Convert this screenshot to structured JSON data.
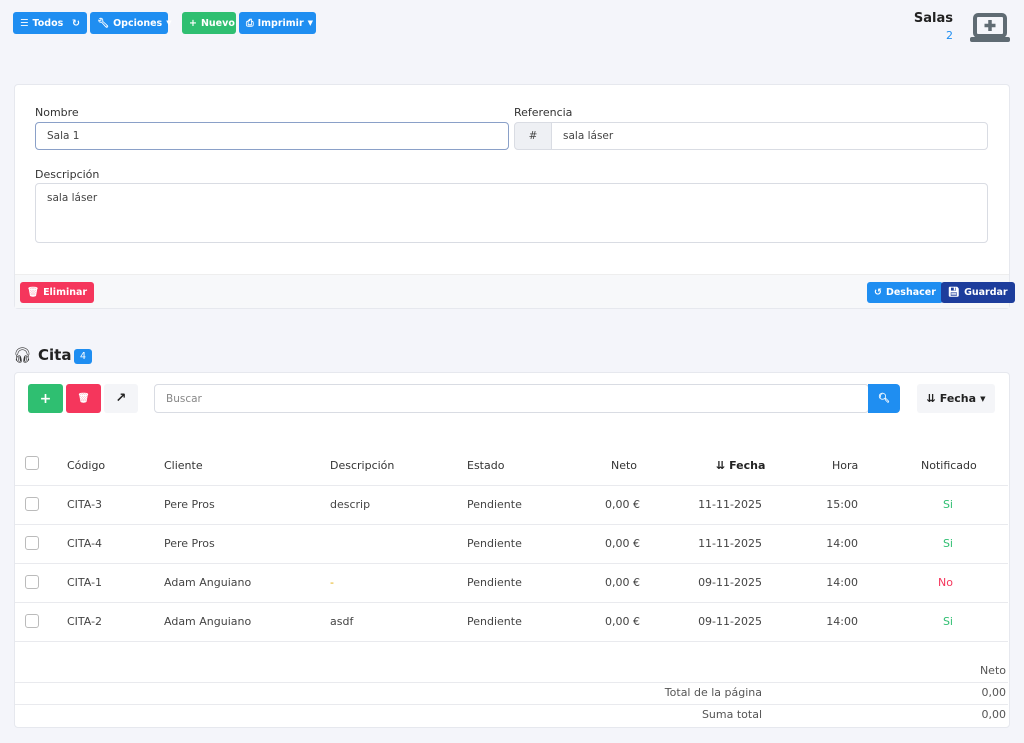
{
  "toolbar": {
    "todos": "Todos",
    "opciones": "Opciones",
    "nuevo": "Nuevo",
    "imprimir": "Imprimir"
  },
  "header": {
    "title": "Salas",
    "count": "2"
  },
  "form": {
    "nombre_label": "Nombre",
    "nombre_value": "Sala 1",
    "referencia_label": "Referencia",
    "referencia_prefix": "#",
    "referencia_value": "sala láser",
    "descripcion_label": "Descripción",
    "descripcion_value": "sala láser",
    "eliminar": "Eliminar",
    "deshacer": "Deshacer",
    "guardar": "Guardar"
  },
  "section": {
    "title": "Cita",
    "count": "4",
    "search_placeholder": "Buscar",
    "sort_label": "Fecha"
  },
  "table": {
    "columns": [
      "Código",
      "Cliente",
      "Descripción",
      "Estado",
      "Neto",
      "Fecha",
      "Hora",
      "Notificado"
    ],
    "rows": [
      {
        "codigo": "CITA-3",
        "cliente": "Pere Pros",
        "descripcion": "descrip",
        "estado": "Pendiente",
        "neto": "0,00 €",
        "fecha": "11-11-2025",
        "hora": "15:00",
        "notificado": "Si"
      },
      {
        "codigo": "CITA-4",
        "cliente": "Pere Pros",
        "descripcion": "",
        "estado": "Pendiente",
        "neto": "0,00 €",
        "fecha": "11-11-2025",
        "hora": "14:00",
        "notificado": "Si"
      },
      {
        "codigo": "CITA-1",
        "cliente": "Adam Anguiano",
        "descripcion": "-",
        "estado": "Pendiente",
        "neto": "0,00 €",
        "fecha": "09-11-2025",
        "hora": "14:00",
        "notificado": "No"
      },
      {
        "codigo": "CITA-2",
        "cliente": "Adam Anguiano",
        "descripcion": "asdf",
        "estado": "Pendiente",
        "neto": "0,00 €",
        "fecha": "09-11-2025",
        "hora": "14:00",
        "notificado": "Si"
      }
    ]
  },
  "totals": {
    "header": "Neto",
    "page_label": "Total de la página",
    "page_value": "0,00",
    "sum_label": "Suma total",
    "sum_value": "0,00"
  },
  "colors": {
    "primary": "#1f8ef1",
    "success": "#2fbf71",
    "danger": "#f5365c",
    "navy": "#1d3d9c"
  }
}
